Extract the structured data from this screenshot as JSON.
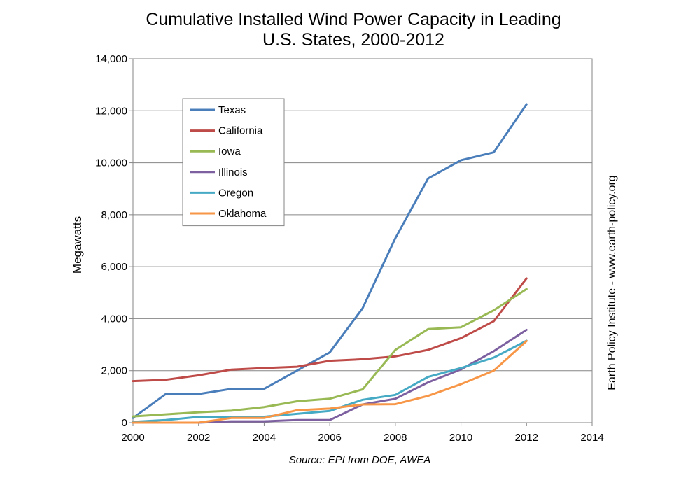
{
  "chart_data": {
    "type": "line",
    "title_lines": [
      "Cumulative Installed Wind Power Capacity in Leading",
      "U.S. States, 2000-2012"
    ],
    "xlabel": "",
    "ylabel": "Megawatts",
    "xlim": [
      2000,
      2014
    ],
    "ylim": [
      0,
      14000
    ],
    "x_ticks": [
      2000,
      2002,
      2004,
      2006,
      2008,
      2010,
      2012,
      2014
    ],
    "y_ticks": [
      0,
      2000,
      4000,
      6000,
      8000,
      10000,
      12000,
      14000
    ],
    "y_tick_labels": [
      "0",
      "2,000",
      "4,000",
      "6,000",
      "8,000",
      "10,000",
      "12,000",
      "14,000"
    ],
    "grid": "horizontal",
    "legend_position": "top-left",
    "x": [
      2000,
      2001,
      2002,
      2003,
      2004,
      2005,
      2006,
      2007,
      2008,
      2009,
      2010,
      2011,
      2012
    ],
    "series": [
      {
        "name": "Texas",
        "color": "#4a7ebb",
        "values": [
          180,
          1100,
          1100,
          1300,
          1300,
          2000,
          2700,
          4400,
          7100,
          9400,
          10100,
          10400,
          12250
        ]
      },
      {
        "name": "California",
        "color": "#be4b48",
        "values": [
          1600,
          1650,
          1820,
          2040,
          2100,
          2150,
          2380,
          2440,
          2550,
          2800,
          3250,
          3900,
          5550
        ]
      },
      {
        "name": "Iowa",
        "color": "#98b954",
        "values": [
          240,
          320,
          400,
          460,
          600,
          820,
          920,
          1280,
          2800,
          3600,
          3670,
          4320,
          5140
        ]
      },
      {
        "name": "Illinois",
        "color": "#7d60a0",
        "values": [
          0,
          0,
          0,
          50,
          50,
          100,
          100,
          700,
          920,
          1550,
          2050,
          2750,
          3570
        ]
      },
      {
        "name": "Oregon",
        "color": "#46aac5",
        "values": [
          30,
          100,
          220,
          230,
          230,
          340,
          450,
          880,
          1070,
          1760,
          2100,
          2500,
          3150
        ]
      },
      {
        "name": "Oklahoma",
        "color": "#f79646",
        "values": [
          0,
          0,
          0,
          180,
          180,
          480,
          540,
          700,
          710,
          1030,
          1480,
          2000,
          3140
        ]
      }
    ],
    "side_note": "Earth Policy Institute - www.earth-policy.org",
    "source_note": "Source: EPI from DOE, AWEA"
  }
}
